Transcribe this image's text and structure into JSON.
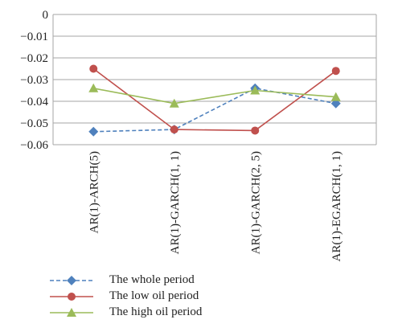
{
  "chart_data": {
    "type": "line",
    "categories": [
      "AR(1)-ARCH(5)",
      "AR(1)-GARCH(1, 1)",
      "AR(1)-GARCH(2, 5)",
      "AR(1)-EGARCH(1, 1)"
    ],
    "yticks": [
      "0",
      "−0.01",
      "−0.02",
      "−0.03",
      "−0.04",
      "−0.05",
      "−0.06"
    ],
    "ylim": [
      -0.06,
      0
    ],
    "grid": true,
    "legend_position": "bottom-left",
    "series": [
      {
        "name": "The whole period",
        "values": [
          -0.054,
          -0.053,
          -0.034,
          -0.041
        ],
        "color": "#4f81bd",
        "marker": "diamond",
        "dash": "dashed"
      },
      {
        "name": "The low oil period",
        "values": [
          -0.025,
          -0.053,
          -0.0535,
          -0.026
        ],
        "color": "#c0504d",
        "marker": "circle",
        "dash": "solid"
      },
      {
        "name": "The high oil period",
        "values": [
          -0.034,
          -0.041,
          -0.035,
          -0.038
        ],
        "color": "#9bbb59",
        "marker": "triangle",
        "dash": "solid"
      }
    ]
  }
}
